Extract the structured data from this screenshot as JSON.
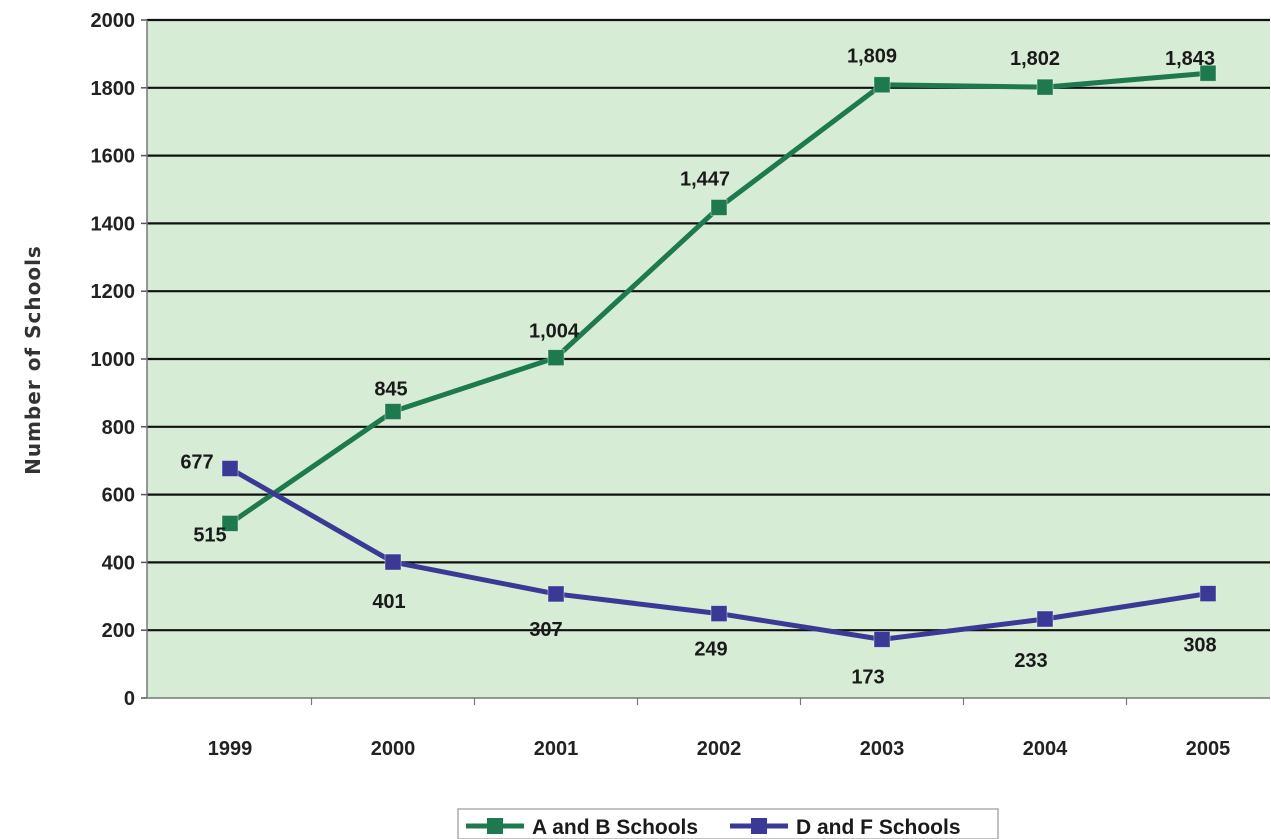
{
  "chart_data": {
    "type": "line",
    "ylabel": "Number of Schools",
    "xlabel": "",
    "x": [
      "1999",
      "2000",
      "2001",
      "2002",
      "2003",
      "2004",
      "2005"
    ],
    "ylim": [
      0,
      2000
    ],
    "yticks": [
      "0",
      "200",
      "400",
      "600",
      "800",
      "1000",
      "1200",
      "1400",
      "1600",
      "1800",
      "2000"
    ],
    "grid": true,
    "legend_position": "bottom-center",
    "background_color": "#d6ecd4",
    "series": [
      {
        "name": "A and B Schools",
        "color": "#1e7a4e",
        "values": [
          515,
          845,
          1004,
          1447,
          1809,
          1802,
          1843
        ],
        "labels": [
          "515",
          "845",
          "1,004",
          "1,447",
          "1,809",
          "1,802",
          "1,843"
        ]
      },
      {
        "name": "D and F Schools",
        "color": "#3a3a96",
        "values": [
          677,
          401,
          307,
          249,
          173,
          233,
          308
        ],
        "labels": [
          "677",
          "401",
          "307",
          "249",
          "173",
          "233",
          "308"
        ]
      }
    ]
  }
}
